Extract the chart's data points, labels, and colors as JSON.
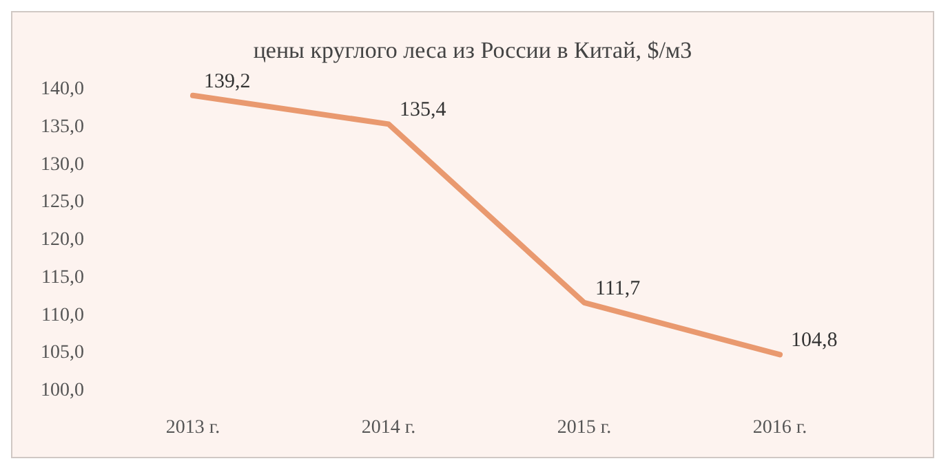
{
  "chart_data": {
    "type": "line",
    "title": "цены круглого леса из России в Китай, $/м3",
    "categories": [
      "2013 г.",
      "2014 г.",
      "2015 г.",
      "2016 г."
    ],
    "series": [
      {
        "color": "#e9996f",
        "values": [
          139.2,
          135.4,
          111.7,
          104.8
        ],
        "value_labels": [
          "139,2",
          "135,4",
          "111,7",
          "104,8"
        ]
      }
    ],
    "ylim": [
      100,
      140
    ],
    "yticks": [
      {
        "value": 100,
        "label": "100,0"
      },
      {
        "value": 105,
        "label": "105,0"
      },
      {
        "value": 110,
        "label": "110,0"
      },
      {
        "value": 115,
        "label": "115,0"
      },
      {
        "value": 120,
        "label": "120,0"
      },
      {
        "value": 125,
        "label": "125,0"
      },
      {
        "value": 130,
        "label": "130,0"
      },
      {
        "value": 135,
        "label": "135,0"
      },
      {
        "value": 140,
        "label": "140,0"
      }
    ],
    "grid": false,
    "marker": "none",
    "line_style": "solid"
  }
}
